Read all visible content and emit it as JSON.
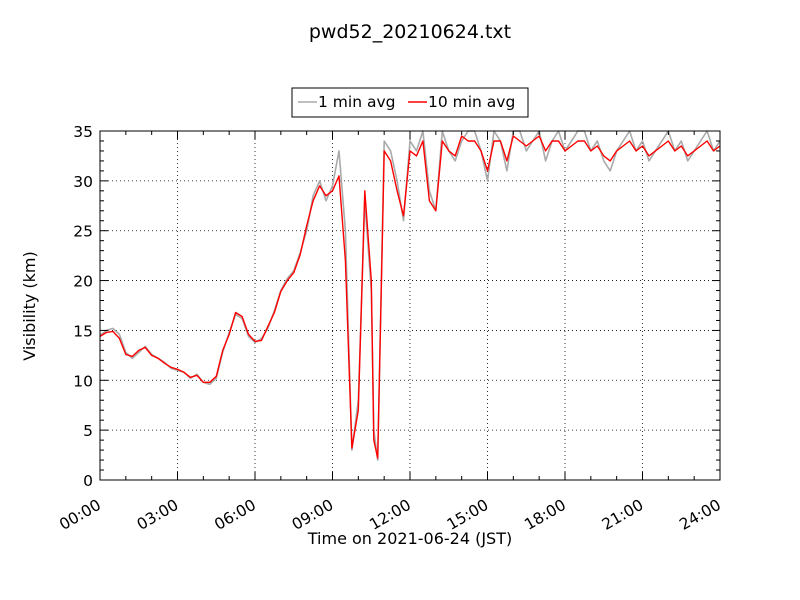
{
  "chart_data": {
    "type": "line",
    "title": "pwd52_20210624.txt",
    "xlabel": "Time on 2021-06-24 (JST)",
    "ylabel": "Visibility (km)",
    "xlim": [
      0,
      24
    ],
    "ylim": [
      0,
      35
    ],
    "x_ticks": [
      "00:00",
      "03:00",
      "06:00",
      "09:00",
      "12:00",
      "15:00",
      "18:00",
      "21:00",
      "24:00"
    ],
    "y_ticks": [
      "0",
      "5",
      "10",
      "15",
      "20",
      "25",
      "30",
      "35"
    ],
    "grid": true,
    "legend_position": "top-center",
    "series": [
      {
        "name": "1 min avg",
        "color": "#aaaaaa",
        "x": [
          0,
          0.25,
          0.5,
          0.75,
          1.0,
          1.25,
          1.5,
          1.75,
          2.0,
          2.25,
          2.5,
          2.75,
          3.0,
          3.25,
          3.5,
          3.75,
          4.0,
          4.25,
          4.5,
          4.75,
          5.0,
          5.25,
          5.5,
          5.75,
          6.0,
          6.25,
          6.5,
          6.75,
          7.0,
          7.25,
          7.5,
          7.75,
          8.0,
          8.25,
          8.5,
          8.75,
          9.0,
          9.25,
          9.5,
          9.75,
          10.0,
          10.25,
          10.5,
          10.6,
          10.75,
          11.0,
          11.25,
          11.5,
          11.75,
          12.0,
          12.25,
          12.5,
          12.75,
          13.0,
          13.25,
          13.5,
          13.75,
          14.0,
          14.25,
          14.5,
          14.75,
          15.0,
          15.25,
          15.5,
          15.75,
          16.0,
          16.25,
          16.5,
          16.75,
          17.0,
          17.25,
          17.5,
          17.75,
          18.0,
          18.25,
          18.5,
          18.75,
          19.0,
          19.25,
          19.5,
          19.75,
          20.0,
          20.25,
          20.5,
          20.75,
          21.0,
          21.25,
          21.5,
          21.75,
          22.0,
          22.25,
          22.5,
          22.75,
          23.0,
          23.25,
          23.5,
          23.75,
          24.0
        ],
        "values": [
          14.5,
          15.0,
          15.2,
          14.6,
          12.8,
          12.2,
          12.8,
          13.4,
          12.6,
          12.2,
          11.8,
          11.2,
          11.0,
          10.8,
          10.2,
          10.6,
          9.8,
          9.6,
          10.2,
          12.8,
          14.8,
          16.6,
          16.2,
          14.4,
          13.8,
          14.2,
          15.2,
          17.0,
          19.0,
          20.2,
          21.0,
          22.8,
          25.0,
          28.5,
          30.0,
          28.0,
          29.5,
          33.0,
          25.0,
          3.0,
          8.0,
          28.0,
          19.0,
          5.0,
          2.0,
          34.0,
          33.0,
          30.0,
          26.0,
          34.0,
          33.0,
          35.0,
          29.0,
          27.0,
          35.0,
          33.0,
          32.0,
          34.0,
          35.0,
          35.0,
          33.0,
          30.0,
          35.0,
          34.0,
          31.0,
          35.0,
          35.0,
          33.0,
          34.0,
          35.0,
          32.0,
          34.0,
          35.0,
          33.0,
          34.0,
          35.0,
          35.0,
          33.0,
          34.0,
          32.0,
          31.0,
          33.0,
          34.0,
          35.0,
          33.0,
          34.0,
          32.0,
          33.0,
          34.0,
          35.0,
          33.0,
          34.0,
          32.0,
          33.0,
          34.0,
          35.0,
          33.0,
          34.0
        ]
      },
      {
        "name": "10 min avg",
        "color": "#ff0000",
        "x": [
          0,
          0.25,
          0.5,
          0.75,
          1.0,
          1.25,
          1.5,
          1.75,
          2.0,
          2.25,
          2.5,
          2.75,
          3.0,
          3.25,
          3.5,
          3.75,
          4.0,
          4.25,
          4.5,
          4.75,
          5.0,
          5.25,
          5.5,
          5.75,
          6.0,
          6.25,
          6.5,
          6.75,
          7.0,
          7.25,
          7.5,
          7.75,
          8.0,
          8.25,
          8.5,
          8.75,
          9.0,
          9.25,
          9.5,
          9.75,
          10.0,
          10.25,
          10.5,
          10.6,
          10.75,
          11.0,
          11.25,
          11.5,
          11.75,
          12.0,
          12.25,
          12.5,
          12.75,
          13.0,
          13.25,
          13.5,
          13.75,
          14.0,
          14.25,
          14.5,
          14.75,
          15.0,
          15.25,
          15.5,
          15.75,
          16.0,
          16.25,
          16.5,
          16.75,
          17.0,
          17.25,
          17.5,
          17.75,
          18.0,
          18.25,
          18.5,
          18.75,
          19.0,
          19.25,
          19.5,
          19.75,
          20.0,
          20.25,
          20.5,
          20.75,
          21.0,
          21.25,
          21.5,
          21.75,
          22.0,
          22.25,
          22.5,
          22.75,
          23.0,
          23.25,
          23.5,
          23.75,
          24.0
        ],
        "values": [
          14.4,
          14.8,
          14.9,
          14.2,
          12.6,
          12.4,
          13.0,
          13.3,
          12.5,
          12.2,
          11.7,
          11.3,
          11.1,
          10.8,
          10.3,
          10.5,
          9.8,
          9.8,
          10.4,
          13.0,
          14.6,
          16.8,
          16.4,
          14.6,
          13.9,
          14.0,
          15.4,
          16.8,
          18.9,
          20.0,
          20.8,
          22.6,
          25.5,
          28.0,
          29.5,
          28.5,
          29.0,
          30.5,
          22.0,
          3.2,
          7.0,
          29.0,
          20.0,
          4.0,
          2.2,
          33.0,
          32.0,
          29.0,
          26.5,
          33.0,
          32.5,
          34.0,
          28.0,
          27.0,
          34.0,
          33.0,
          32.5,
          34.5,
          34.0,
          34.0,
          33.0,
          31.0,
          34.0,
          34.0,
          32.0,
          34.5,
          34.0,
          33.5,
          34.0,
          34.5,
          33.0,
          34.0,
          34.0,
          33.0,
          33.5,
          34.0,
          34.0,
          33.0,
          33.5,
          32.5,
          32.0,
          33.0,
          33.5,
          34.0,
          33.0,
          33.5,
          32.5,
          33.0,
          33.5,
          34.0,
          33.0,
          33.5,
          32.5,
          33.0,
          33.5,
          34.0,
          33.0,
          33.5
        ]
      }
    ]
  }
}
